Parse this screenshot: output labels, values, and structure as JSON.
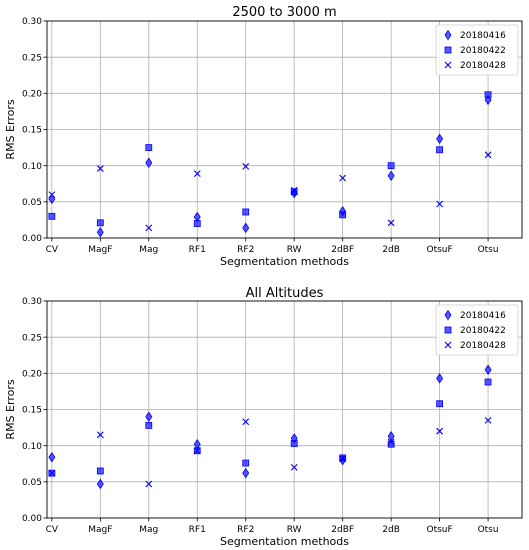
{
  "chart_data": [
    {
      "type": "scatter",
      "title": "2500 to 3000 m",
      "xlabel": "Segmentation methods",
      "ylabel": "RMS Errors",
      "ylim": [
        0,
        0.3
      ],
      "yticks": [
        "0.00",
        "0.05",
        "0.10",
        "0.15",
        "0.20",
        "0.25",
        "0.30"
      ],
      "grid": true,
      "legend_position": "top-right",
      "categories": [
        "CV",
        "MagF",
        "Mag",
        "RF1",
        "RF2",
        "RW",
        "2dBF",
        "2dB",
        "OtsuF",
        "Otsu"
      ],
      "series": [
        {
          "name": "20180416",
          "marker": "diamond",
          "values": [
            0.054,
            0.008,
            0.104,
            0.029,
            0.014,
            0.062,
            0.037,
            0.086,
            0.137,
            0.191
          ]
        },
        {
          "name": "20180422",
          "marker": "square",
          "values": [
            0.03,
            0.021,
            0.125,
            0.02,
            0.036,
            0.064,
            0.032,
            0.1,
            0.122,
            0.198
          ]
        },
        {
          "name": "20180428",
          "marker": "x",
          "values": [
            0.06,
            0.096,
            0.014,
            0.089,
            0.099,
            0.066,
            0.083,
            0.021,
            0.047,
            0.115
          ]
        }
      ]
    },
    {
      "type": "scatter",
      "title": "All Altitudes",
      "xlabel": "Segmentation methods",
      "ylabel": "RMS Errors",
      "ylim": [
        0,
        0.3
      ],
      "yticks": [
        "0.00",
        "0.05",
        "0.10",
        "0.15",
        "0.20",
        "0.25",
        "0.30"
      ],
      "grid": true,
      "legend_position": "top-right",
      "categories": [
        "CV",
        "MagF",
        "Mag",
        "RF1",
        "RF2",
        "RW",
        "2dBF",
        "2dB",
        "OtsuF",
        "Otsu"
      ],
      "series": [
        {
          "name": "20180416",
          "marker": "diamond",
          "values": [
            0.084,
            0.047,
            0.14,
            0.102,
            0.062,
            0.11,
            0.08,
            0.113,
            0.193,
            0.205
          ]
        },
        {
          "name": "20180422",
          "marker": "square",
          "values": [
            0.062,
            0.065,
            0.128,
            0.093,
            0.076,
            0.103,
            0.083,
            0.102,
            0.158,
            0.188
          ]
        },
        {
          "name": "20180428",
          "marker": "x",
          "values": [
            0.062,
            0.115,
            0.047,
            0.093,
            0.133,
            0.07,
            0.082,
            0.105,
            0.12,
            0.135
          ]
        }
      ]
    }
  ],
  "colors": {
    "marker": "#0000ff",
    "grid": "#b0b0b0",
    "axis": "#000000"
  }
}
